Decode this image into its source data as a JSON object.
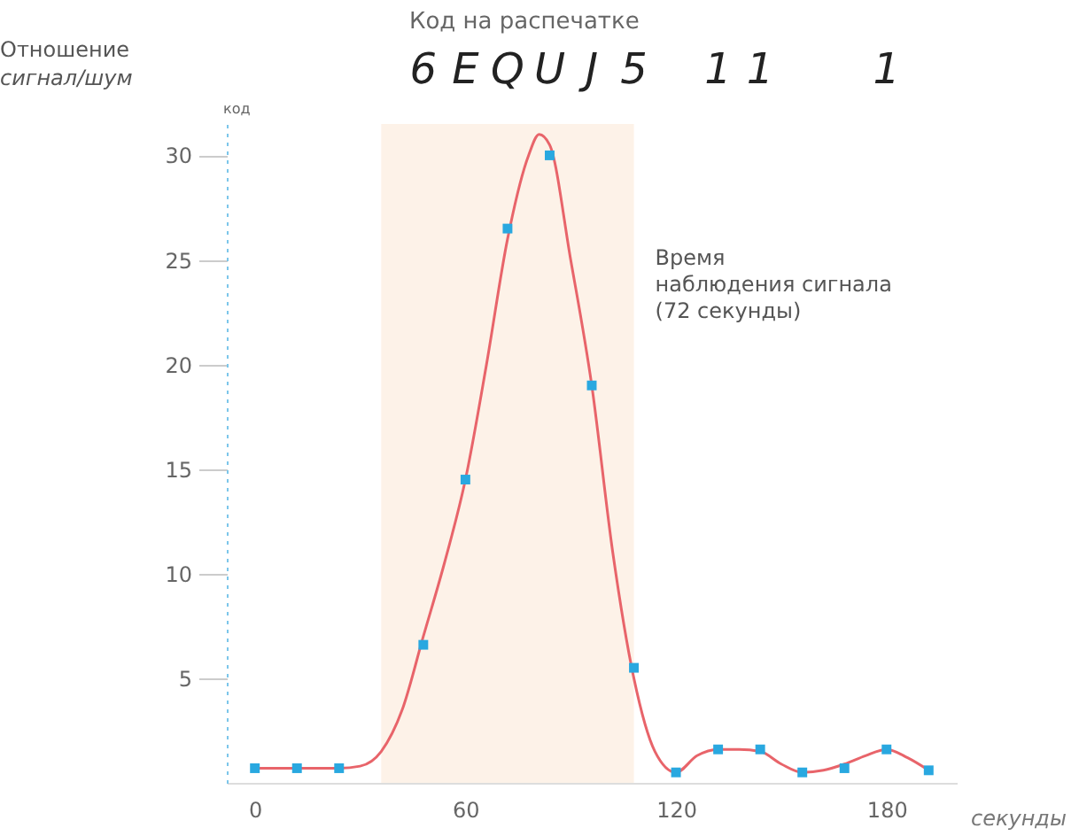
{
  "chart_data": {
    "type": "line",
    "title": "Код на распечатке",
    "xlabel": "секунды",
    "ylabel": "Отношение сигнал/шум",
    "xlim": [
      -8,
      200
    ],
    "xticks": [
      0,
      60,
      120,
      180
    ],
    "ylim": [
      0,
      31.5
    ],
    "yticks": [
      5,
      10,
      15,
      20,
      25,
      30
    ],
    "series": [
      {
        "color": "#e8646a",
        "x": [
          0,
          12,
          24,
          30,
          36,
          42,
          48,
          54,
          60,
          66,
          72,
          78,
          81,
          84,
          90,
          96,
          102,
          108,
          114,
          120,
          126,
          132,
          138,
          144,
          150,
          156,
          162,
          168,
          174,
          180,
          186,
          192
        ],
        "values": [
          0.7,
          0.7,
          0.7,
          0.8,
          1.5,
          3.5,
          7,
          10.5,
          14.5,
          20,
          26,
          30,
          31,
          30.5,
          25,
          19,
          11,
          5,
          1.5,
          0.5,
          1.3,
          1.6,
          1.6,
          1.5,
          0.9,
          0.5,
          0.6,
          0.9,
          1.3,
          1.6,
          1.2,
          0.6
        ]
      },
      {
        "type": "scatter",
        "color": "#29a8e0",
        "marker": "square",
        "x": [
          0,
          12,
          24,
          48,
          60,
          72,
          84,
          96,
          108,
          120,
          132,
          144,
          156,
          168,
          180,
          192
        ],
        "values": [
          0.7,
          0.7,
          0.7,
          6.6,
          14.5,
          26.5,
          30,
          19,
          5.5,
          0.5,
          1.6,
          1.6,
          0.5,
          0.7,
          1.6,
          0.6
        ]
      }
    ],
    "bands": [
      {
        "axis": "x",
        "from": 36,
        "to": 108,
        "color": "#fdf1e6",
        "label": "Время\nнаблюдения сигнала\n(72 секунды)"
      }
    ],
    "annotations": [
      "код",
      "6",
      "E",
      "Q",
      "U",
      "J",
      "5",
      "1",
      "1",
      "1"
    ]
  }
}
